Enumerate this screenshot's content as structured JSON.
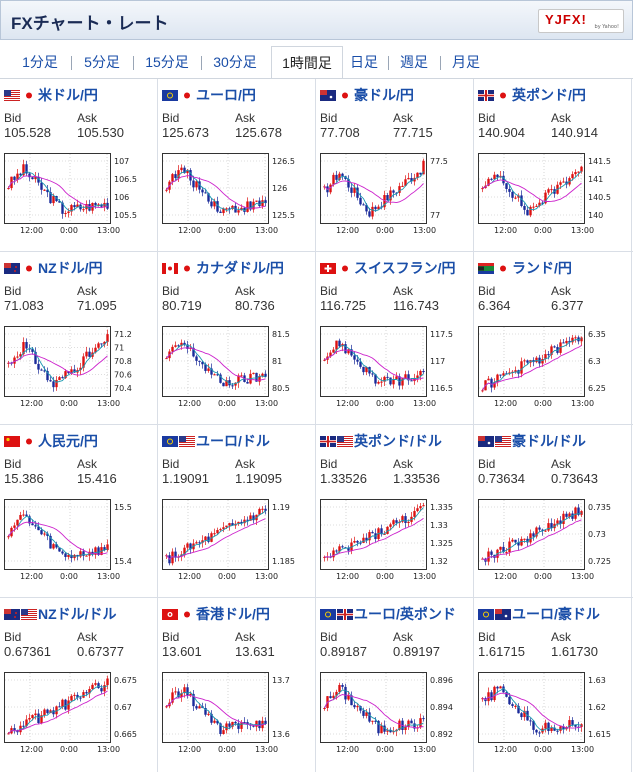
{
  "header": {
    "title": "FXチャート・レート",
    "logo_text": "YJFX!",
    "logo_sub": "by Yahoo!"
  },
  "tabs": [
    {
      "label": "1分足",
      "active": false
    },
    {
      "label": "5分足",
      "active": false
    },
    {
      "label": "15分足",
      "active": false
    },
    {
      "label": "30分足",
      "active": false
    },
    {
      "label": "1時間足",
      "active": true
    },
    {
      "label": "日足",
      "active": false
    },
    {
      "label": "週足",
      "active": false
    },
    {
      "label": "月足",
      "active": false
    }
  ],
  "labels": {
    "bid": "Bid",
    "ask": "Ask"
  },
  "cards": [
    {
      "name": "米ドル/円",
      "bid": "105.528",
      "ask": "105.530",
      "flags": [
        "us",
        "jp"
      ],
      "y_ticks": [
        "107",
        "106.5",
        "106",
        "105.5"
      ],
      "x_ticks": [
        "12:00",
        "0:00",
        "13:00"
      ],
      "pattern": "down"
    },
    {
      "name": "ユーロ/円",
      "bid": "125.673",
      "ask": "125.678",
      "flags": [
        "eu",
        "jp"
      ],
      "y_ticks": [
        "126.5",
        "126",
        "125.5"
      ],
      "x_ticks": [
        "12:00",
        "0:00",
        "13:00"
      ],
      "pattern": "down"
    },
    {
      "name": "豪ドル/円",
      "bid": "77.708",
      "ask": "77.715",
      "flags": [
        "au",
        "jp"
      ],
      "y_ticks": [
        "77.5",
        "77"
      ],
      "x_ticks": [
        "12:00",
        "0:00",
        "13:00"
      ],
      "pattern": "vup"
    },
    {
      "name": "英ポンド/円",
      "bid": "140.904",
      "ask": "140.914",
      "flags": [
        "gb",
        "jp"
      ],
      "y_ticks": [
        "141.5",
        "141",
        "140.5",
        "140"
      ],
      "x_ticks": [
        "12:00",
        "0:00",
        "13:00"
      ],
      "pattern": "vup"
    },
    {
      "name": "NZドル/円",
      "bid": "71.083",
      "ask": "71.095",
      "flags": [
        "nz",
        "jp"
      ],
      "y_ticks": [
        "71.2",
        "71",
        "70.8",
        "70.6",
        "70.4"
      ],
      "x_ticks": [
        "12:00",
        "0:00",
        "13:00"
      ],
      "pattern": "vup"
    },
    {
      "name": "カナダドル/円",
      "bid": "80.719",
      "ask": "80.736",
      "flags": [
        "ca",
        "jp"
      ],
      "y_ticks": [
        "81.5",
        "81",
        "80.5"
      ],
      "x_ticks": [
        "12:00",
        "0:00",
        "13:00"
      ],
      "pattern": "down"
    },
    {
      "name": "スイスフラン/円",
      "bid": "116.725",
      "ask": "116.743",
      "flags": [
        "ch",
        "jp"
      ],
      "y_ticks": [
        "117.5",
        "117",
        "116.5"
      ],
      "x_ticks": [
        "12:00",
        "0:00",
        "13:00"
      ],
      "pattern": "down"
    },
    {
      "name": "ランド/円",
      "bid": "6.364",
      "ask": "6.377",
      "flags": [
        "za",
        "jp"
      ],
      "y_ticks": [
        "6.35",
        "6.3",
        "6.25"
      ],
      "x_ticks": [
        "12:00",
        "0:00",
        "13:00"
      ],
      "pattern": "up"
    },
    {
      "name": "人民元/円",
      "bid": "15.386",
      "ask": "15.416",
      "flags": [
        "cn",
        "jp"
      ],
      "y_ticks": [
        "15.5",
        "15.4"
      ],
      "x_ticks": [
        "12:00",
        "0:00",
        "13:00"
      ],
      "pattern": "down"
    },
    {
      "name": "ユーロ/ドル",
      "bid": "1.19091",
      "ask": "1.19095",
      "flags": [
        "eu",
        "us"
      ],
      "y_ticks": [
        "1.19",
        "1.185"
      ],
      "x_ticks": [
        "12:00",
        "0:00",
        "13:00"
      ],
      "pattern": "up"
    },
    {
      "name": "英ポンド/ドル",
      "bid": "1.33526",
      "ask": "1.33536",
      "flags": [
        "gb",
        "us"
      ],
      "y_ticks": [
        "1.335",
        "1.33",
        "1.325",
        "1.32"
      ],
      "x_ticks": [
        "12:00",
        "0:00",
        "13:00"
      ],
      "pattern": "up"
    },
    {
      "name": "豪ドル/ドル",
      "bid": "0.73634",
      "ask": "0.73643",
      "flags": [
        "au",
        "us"
      ],
      "y_ticks": [
        "0.735",
        "0.73",
        "0.725"
      ],
      "x_ticks": [
        "12:00",
        "0:00",
        "13:00"
      ],
      "pattern": "up"
    },
    {
      "name": "NZドル/ドル",
      "bid": "0.67361",
      "ask": "0.67377",
      "flags": [
        "nz",
        "us"
      ],
      "y_ticks": [
        "0.675",
        "0.67",
        "0.665"
      ],
      "x_ticks": [
        "12:00",
        "0:00",
        "13:00"
      ],
      "pattern": "up"
    },
    {
      "name": "香港ドル/円",
      "bid": "13.601",
      "ask": "13.631",
      "flags": [
        "hk",
        "jp"
      ],
      "y_ticks": [
        "13.7",
        "13.6"
      ],
      "x_ticks": [
        "12:00",
        "0:00",
        "13:00"
      ],
      "pattern": "down"
    },
    {
      "name": "ユーロ/英ポンド",
      "bid": "0.89187",
      "ask": "0.89197",
      "flags": [
        "eu",
        "gb"
      ],
      "y_ticks": [
        "0.896",
        "0.894",
        "0.892"
      ],
      "x_ticks": [
        "12:00",
        "0:00",
        "13:00"
      ],
      "pattern": "down"
    },
    {
      "name": "ユーロ/豪ドル",
      "bid": "1.61715",
      "ask": "1.61730",
      "flags": [
        "eu",
        "au"
      ],
      "y_ticks": [
        "1.63",
        "1.62",
        "1.615"
      ],
      "x_ticks": [
        "12:00",
        "0:00",
        "13:00"
      ],
      "pattern": "down"
    }
  ],
  "colors": {
    "up": "#dd1111",
    "down": "#1a2a9a",
    "ma_short": "#1a9ab0",
    "ma_long": "#cc22cc",
    "title": "#1a4ea8"
  }
}
